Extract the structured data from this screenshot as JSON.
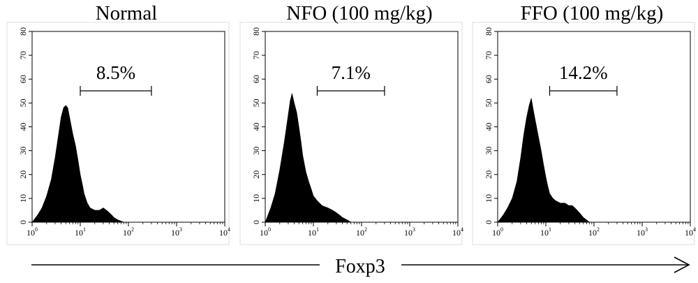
{
  "figure": {
    "xlabel": "Foxp3"
  },
  "chart_data": [
    {
      "type": "area",
      "title": "Normal",
      "gate_label": "8.5%",
      "gate_range": [
        10,
        300
      ],
      "xscale": "log",
      "xlim": [
        1,
        10000
      ],
      "ylim": [
        0,
        80
      ],
      "xticks": [
        "10^0",
        "10^1",
        "10^2",
        "10^3",
        "10^4"
      ],
      "yticks": [
        "0",
        "10",
        "20",
        "30",
        "40",
        "50",
        "60",
        "70",
        "80"
      ],
      "histogram": {
        "x": [
          1.0,
          1.3,
          1.6,
          2.0,
          2.5,
          3.0,
          3.5,
          4.0,
          4.5,
          5.0,
          5.5,
          6.0,
          7.0,
          8.0,
          9.0,
          10.0,
          11.0,
          12.0,
          14.0,
          16.0,
          20.0,
          25.0,
          30.0,
          35.0,
          40.0,
          45.0,
          50.0,
          60.0,
          70.0,
          80.0
        ],
        "y": [
          0,
          3,
          6,
          11,
          18,
          27,
          36,
          44,
          48,
          49,
          48,
          44,
          37,
          32,
          26,
          20,
          16,
          12,
          8,
          6,
          5,
          5,
          6,
          5,
          4,
          3,
          2,
          1,
          0.5,
          0
        ]
      }
    },
    {
      "type": "area",
      "title": "NFO (100 mg/kg)",
      "gate_label": "7.1%",
      "gate_range": [
        12,
        300
      ],
      "xscale": "log",
      "xlim": [
        1,
        10000
      ],
      "ylim": [
        0,
        80
      ],
      "xticks": [
        "10^0",
        "10^1",
        "10^2",
        "10^3",
        "10^4"
      ],
      "yticks": [
        "0",
        "10",
        "20",
        "30",
        "40",
        "50",
        "60",
        "70",
        "80"
      ],
      "histogram": {
        "x": [
          1.0,
          1.3,
          1.6,
          2.0,
          2.5,
          3.0,
          3.3,
          3.6,
          4.0,
          4.5,
          5.0,
          5.5,
          6.0,
          7.0,
          8.0,
          9.0,
          10.0,
          12.0,
          15.0,
          20.0,
          25.0,
          30.0,
          35.0,
          40.0,
          50.0,
          60.0
        ],
        "y": [
          0,
          6,
          12,
          22,
          34,
          45,
          51,
          54,
          50,
          46,
          40,
          34,
          28,
          21,
          17,
          14,
          11,
          9,
          7,
          6,
          5,
          4,
          3,
          2,
          1,
          0
        ]
      }
    },
    {
      "type": "area",
      "title": "FFO (100 mg/kg)",
      "gate_label": "14.2%",
      "gate_range": [
        12,
        300
      ],
      "xscale": "log",
      "xlim": [
        1,
        10000
      ],
      "ylim": [
        0,
        80
      ],
      "xticks": [
        "10^0",
        "10^1",
        "10^2",
        "10^3",
        "10^4"
      ],
      "yticks": [
        "0",
        "10",
        "20",
        "30",
        "40",
        "50",
        "60",
        "70",
        "80"
      ],
      "histogram": {
        "x": [
          1.0,
          1.3,
          1.6,
          2.0,
          2.5,
          3.0,
          3.5,
          4.0,
          4.5,
          5.0,
          5.5,
          6.0,
          7.0,
          8.0,
          9.0,
          10.0,
          11.0,
          12.0,
          14.0,
          16.0,
          20.0,
          25.0,
          30.0,
          35.0,
          40.0,
          50.0,
          60.0,
          70.0,
          80.0
        ],
        "y": [
          0,
          3,
          6,
          10,
          17,
          27,
          37,
          44,
          49,
          52,
          47,
          43,
          36,
          30,
          24,
          19,
          15,
          12,
          10,
          9,
          8,
          8,
          7,
          7,
          6,
          4,
          2,
          1,
          0
        ]
      }
    }
  ]
}
